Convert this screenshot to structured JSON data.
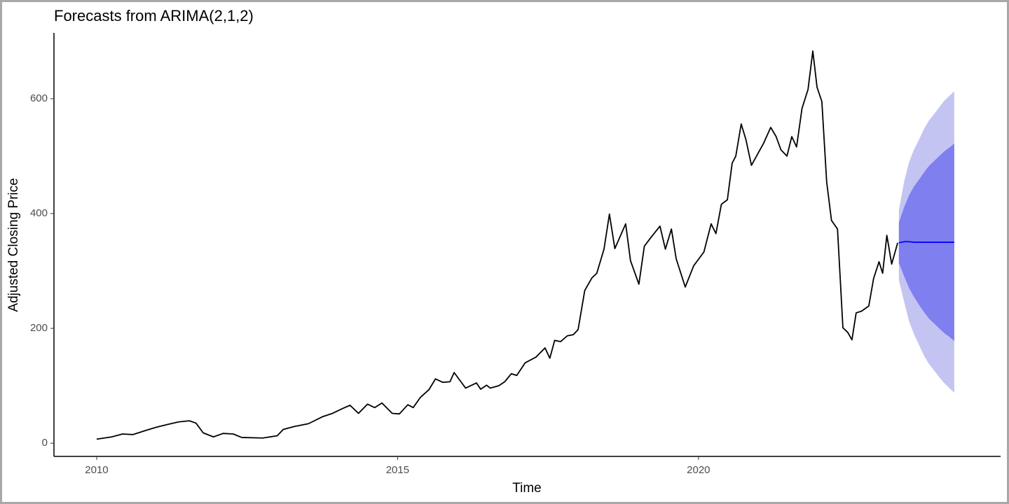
{
  "chart_data": {
    "type": "forecast-line",
    "title": "Forecasts from ARIMA(2,1,2)",
    "x_label": "Time",
    "y_label": "Adjusted Closing Price",
    "xlim": [
      2009.29,
      2025.02
    ],
    "ylim": [
      -23,
      714.6
    ],
    "xticks": [
      2010,
      2015,
      2020
    ],
    "yticks": [
      0,
      200,
      400,
      600
    ],
    "grid": false,
    "color": "#000000",
    "x": [
      2010.0,
      2010.25,
      2010.43,
      2010.6,
      2010.84,
      2011.0,
      2011.19,
      2011.36,
      2011.54,
      2011.65,
      2011.77,
      2011.94,
      2012.1,
      2012.27,
      2012.41,
      2012.76,
      2013.0,
      2013.1,
      2013.28,
      2013.52,
      2013.75,
      2013.92,
      2014.1,
      2014.21,
      2014.35,
      2014.5,
      2014.62,
      2014.74,
      2014.91,
      2015.03,
      2015.17,
      2015.26,
      2015.38,
      2015.52,
      2015.63,
      2015.75,
      2015.87,
      2015.94,
      2016.13,
      2016.31,
      2016.38,
      2016.48,
      2016.54,
      2016.68,
      2016.78,
      2016.89,
      2016.98,
      2017.12,
      2017.3,
      2017.45,
      2017.53,
      2017.61,
      2017.71,
      2017.82,
      2017.92,
      2018.0,
      2018.11,
      2018.23,
      2018.31,
      2018.43,
      2018.52,
      2018.61,
      2018.79,
      2018.87,
      2019.01,
      2019.1,
      2019.2,
      2019.36,
      2019.45,
      2019.55,
      2019.63,
      2019.78,
      2019.92,
      2020.09,
      2020.21,
      2020.29,
      2020.38,
      2020.48,
      2020.56,
      2020.62,
      2020.71,
      2020.79,
      2020.88,
      2021.08,
      2021.2,
      2021.29,
      2021.37,
      2021.47,
      2021.55,
      2021.63,
      2021.72,
      2021.82,
      2021.9,
      2021.97,
      2022.05,
      2022.13,
      2022.21,
      2022.31,
      2022.4,
      2022.48,
      2022.55,
      2022.62,
      2022.71,
      2022.83,
      2022.91,
      2023.0,
      2023.06,
      2023.13,
      2023.21,
      2023.31
    ],
    "values": [
      7,
      11,
      16,
      15,
      23,
      28,
      33,
      37,
      39,
      35,
      18,
      11,
      17,
      16,
      10,
      9,
      13,
      24,
      29,
      34,
      46,
      52,
      61,
      66,
      52,
      68,
      62,
      70,
      52,
      51,
      67,
      62,
      80,
      93,
      112,
      106,
      107,
      123,
      96,
      105,
      94,
      101,
      96,
      100,
      107,
      121,
      118,
      140,
      150,
      166,
      148,
      179,
      177,
      187,
      189,
      198,
      266,
      288,
      296,
      338,
      399,
      339,
      382,
      318,
      277,
      343,
      357,
      378,
      338,
      373,
      321,
      272,
      309,
      333,
      382,
      365,
      416,
      424,
      488,
      500,
      556,
      528,
      484,
      522,
      550,
      534,
      511,
      500,
      534,
      516,
      583,
      616,
      683,
      620,
      595,
      455,
      388,
      373,
      201,
      193,
      180,
      227,
      230,
      239,
      287,
      316,
      296,
      362,
      312,
      349
    ],
    "forecast": {
      "x": [
        2023.33,
        2023.42,
        2023.5,
        2023.58,
        2023.67,
        2023.75,
        2023.83,
        2023.92,
        2024.0,
        2024.08,
        2024.17,
        2024.25
      ],
      "mean": [
        349,
        351,
        351,
        350,
        350,
        350,
        350,
        350,
        350,
        350,
        350,
        350
      ],
      "lo80": [
        314,
        290,
        270,
        255,
        240,
        228,
        217,
        208,
        200,
        192,
        185,
        178
      ],
      "hi80": [
        384,
        412,
        432,
        447,
        460,
        472,
        483,
        492,
        500,
        508,
        515,
        522
      ],
      "lo95": [
        284,
        245,
        212,
        190,
        170,
        152,
        138,
        126,
        115,
        105,
        96,
        88
      ],
      "hi95": [
        406,
        457,
        490,
        511,
        530,
        548,
        562,
        574,
        585,
        596,
        605,
        613
      ],
      "mean_color": "#0000ff",
      "band80_color": "#7f7fef",
      "band95_color": "#c4c4f3"
    }
  }
}
